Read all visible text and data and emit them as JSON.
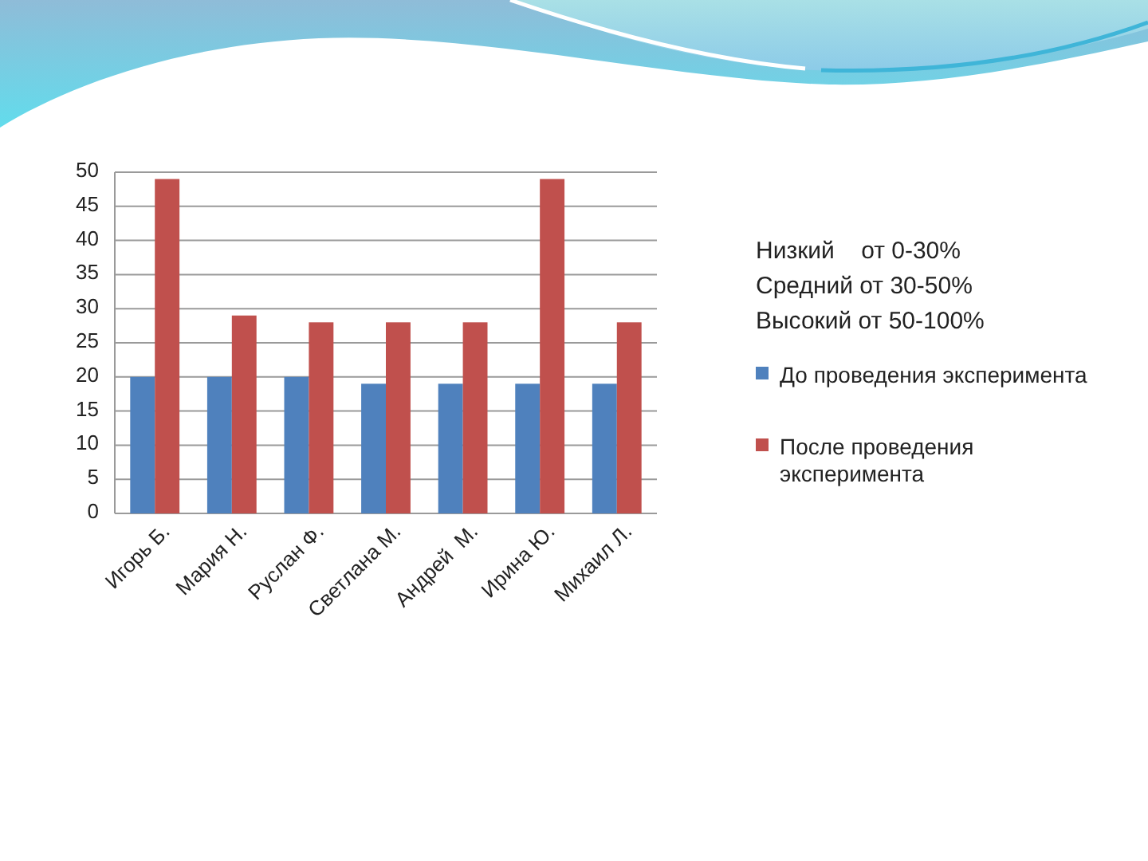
{
  "chart_data": {
    "type": "bar",
    "categories": [
      "Игорь Б.",
      "Мария Н.",
      "Руслан Ф.",
      "Светлана М.",
      "Андрей  М.",
      "Ирина Ю.",
      "Михаил Л."
    ],
    "series": [
      {
        "name": "До проведения эксперимента",
        "color": "#4f81bd",
        "values": [
          20,
          20,
          20,
          19,
          19,
          19,
          19
        ]
      },
      {
        "name": "После проведения эксперимента",
        "color": "#c0504d",
        "values": [
          49,
          29,
          28,
          28,
          28,
          49,
          28
        ]
      }
    ],
    "ylim": [
      0,
      50
    ],
    "yticks": [
      0,
      5,
      10,
      15,
      20,
      25,
      30,
      35,
      40,
      45,
      50
    ],
    "grid": "y",
    "legend": "right",
    "annotations": [
      "Низкий    от 0-30%",
      "Средний от 30-50%",
      "Высокий от 50-100%"
    ]
  }
}
